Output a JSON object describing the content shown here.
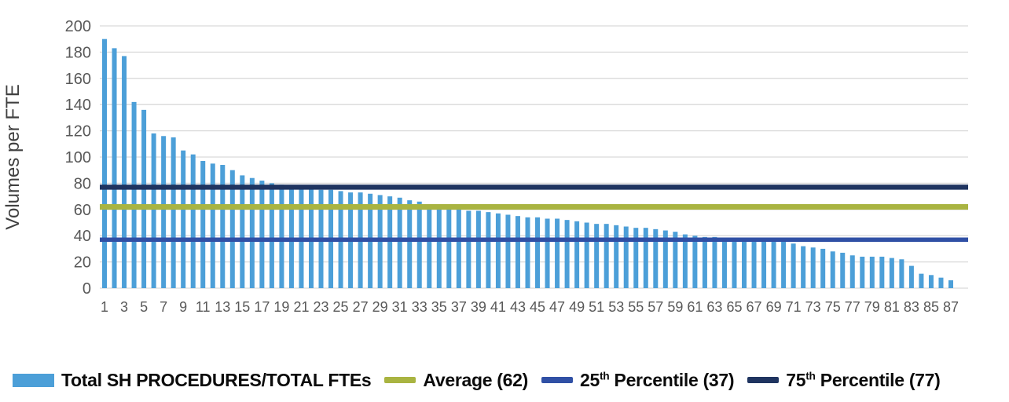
{
  "chart_data": {
    "type": "bar",
    "title": "",
    "xlabel": "",
    "ylabel": "Volumes per FTE",
    "ylim": [
      0,
      200
    ],
    "ytick_step": 20,
    "grid": true,
    "legend_position": "bottom",
    "x_start": 1,
    "xtick_labels": [
      1,
      3,
      5,
      7,
      9,
      11,
      13,
      15,
      17,
      19,
      21,
      23,
      25,
      27,
      29,
      31,
      33,
      35,
      37,
      39,
      41,
      43,
      45,
      47,
      49,
      51,
      53,
      55,
      57,
      59,
      61,
      63,
      65,
      67,
      69,
      71,
      73,
      75,
      77,
      79,
      81,
      83,
      85,
      87
    ],
    "series": [
      {
        "name": "Total SH PROCEDURES/TOTAL FTEs",
        "color": "#4C9FD8",
        "values": [
          190,
          183,
          177,
          142,
          136,
          118,
          116,
          115,
          105,
          102,
          97,
          95,
          94,
          90,
          86,
          84,
          82,
          80,
          79,
          78,
          77,
          76,
          75,
          75,
          74,
          73,
          73,
          72,
          71,
          70,
          69,
          67,
          66,
          64,
          61,
          60,
          60,
          59,
          59,
          58,
          57,
          56,
          55,
          54,
          54,
          53,
          53,
          52,
          51,
          50,
          49,
          49,
          48,
          47,
          46,
          46,
          45,
          44,
          43,
          41,
          40,
          39,
          39,
          38,
          38,
          37,
          37,
          37,
          36,
          36,
          34,
          32,
          31,
          30,
          28,
          27,
          25,
          24,
          24,
          24,
          23,
          22,
          17,
          11,
          10,
          8,
          6
        ]
      }
    ],
    "reference_lines": [
      {
        "name": "Average",
        "value": 62,
        "color": "#A9B441",
        "legend_label": "Average (62)"
      },
      {
        "name": "25th Percentile",
        "value": 37,
        "color": "#3050A5",
        "legend_label": "25th Percentile (37)"
      },
      {
        "name": "75th Percentile",
        "value": 77,
        "color": "#1F3460",
        "legend_label": "75th Percentile (77)"
      }
    ]
  },
  "axis": {
    "y_ticks": [
      "0",
      "20",
      "40",
      "60",
      "80",
      "100",
      "120",
      "140",
      "160",
      "180",
      "200"
    ],
    "y_title": "Volumes per FTE"
  },
  "colors": {
    "bar": "#4C9FD8",
    "average_line": "#A9B441",
    "p25_line": "#3050A5",
    "p75_line": "#1F3460",
    "gridline": "#D9D9D9",
    "axis_text": "#595959",
    "legend_text": "#0B0B0B",
    "background": "#FFFFFF"
  },
  "legend": {
    "items": [
      {
        "type": "bar",
        "color": "#4C9FD8",
        "pre": "Total SH PROCEDURES/TOTAL FTEs",
        "sup": "",
        "post": ""
      },
      {
        "type": "line",
        "color": "#A9B441",
        "pre": "Average (62)",
        "sup": "",
        "post": ""
      },
      {
        "type": "line",
        "color": "#3050A5",
        "pre": "25",
        "sup": "th",
        "post": " Percentile (37)"
      },
      {
        "type": "line",
        "color": "#1F3460",
        "pre": "75",
        "sup": "th",
        "post": " Percentile (77)"
      }
    ]
  }
}
